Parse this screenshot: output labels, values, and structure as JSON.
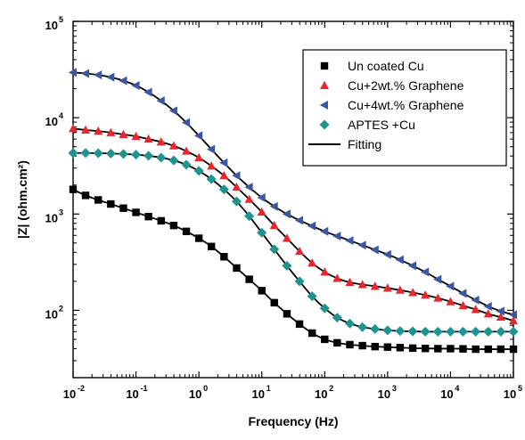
{
  "chart_data": {
    "type": "scatter",
    "xlabel": "Frequency (Hz)",
    "ylabel": "|Z| (ohm.cm²)",
    "x_scale": "log",
    "y_scale": "log",
    "xlim": [
      0.01,
      100000
    ],
    "ylim": [
      20,
      100000
    ],
    "x_ticks": [
      {
        "value": 0.01,
        "base": "10",
        "exp": "-2"
      },
      {
        "value": 0.1,
        "base": "10",
        "exp": "-1"
      },
      {
        "value": 1,
        "base": "10",
        "exp": "0"
      },
      {
        "value": 10,
        "base": "10",
        "exp": "1"
      },
      {
        "value": 100,
        "base": "10",
        "exp": "2"
      },
      {
        "value": 1000,
        "base": "10",
        "exp": "3"
      },
      {
        "value": 10000,
        "base": "10",
        "exp": "4"
      },
      {
        "value": 100000,
        "base": "10",
        "exp": "5"
      }
    ],
    "y_ticks": [
      {
        "value": 100,
        "base": "10",
        "exp": "2"
      },
      {
        "value": 1000,
        "base": "10",
        "exp": "3"
      },
      {
        "value": 10000,
        "base": "10",
        "exp": "4"
      },
      {
        "value": 100000,
        "base": "10",
        "exp": "5"
      }
    ],
    "grid": false,
    "legend_position": "top-right",
    "fit_label": "Fitting",
    "series": [
      {
        "name": "Un coated Cu",
        "marker": "square",
        "color": "#000000",
        "x": [
          0.01,
          0.0158,
          0.0251,
          0.0398,
          0.0631,
          0.1,
          0.158,
          0.251,
          0.398,
          0.631,
          1,
          1.58,
          2.51,
          3.98,
          6.31,
          10,
          15.8,
          25.1,
          39.8,
          63.1,
          100,
          158,
          251,
          398,
          631,
          1000,
          1580,
          2510,
          3980,
          6310,
          10000,
          15800,
          25100,
          39800,
          63100,
          100000
        ],
        "values": [
          1800,
          1560,
          1400,
          1270,
          1150,
          1040,
          940,
          850,
          760,
          660,
          560,
          460,
          360,
          275,
          210,
          160,
          120,
          92,
          72,
          58,
          50,
          46,
          44,
          43,
          42,
          41.5,
          41,
          40.5,
          40.2,
          40,
          40,
          39.8,
          39.5,
          39.5,
          39.5,
          39.5
        ]
      },
      {
        "name": "Cu+2wt.% Graphene",
        "marker": "triangle-up",
        "color": "#e8262b",
        "x": [
          0.01,
          0.0158,
          0.0251,
          0.0398,
          0.0631,
          0.1,
          0.158,
          0.251,
          0.398,
          0.631,
          1,
          1.58,
          2.51,
          3.98,
          6.31,
          10,
          15.8,
          25.1,
          39.8,
          63.1,
          100,
          158,
          251,
          398,
          631,
          1000,
          1580,
          2510,
          3980,
          6310,
          10000,
          15800,
          25100,
          39800,
          63100,
          100000
        ],
        "values": [
          7700,
          7450,
          7250,
          7000,
          6700,
          6400,
          6000,
          5600,
          5100,
          4500,
          3850,
          3150,
          2500,
          1900,
          1420,
          1050,
          760,
          560,
          410,
          310,
          250,
          215,
          195,
          185,
          178,
          170,
          162,
          153,
          144,
          134,
          123,
          112,
          102,
          92,
          85,
          78
        ]
      },
      {
        "name": "Cu+4wt.% Graphene",
        "marker": "triangle-left",
        "color": "#3a56a5",
        "x": [
          0.01,
          0.0158,
          0.0251,
          0.0398,
          0.0631,
          0.1,
          0.158,
          0.251,
          0.398,
          0.631,
          1,
          1.58,
          2.51,
          3.98,
          6.31,
          10,
          15.8,
          25.1,
          39.8,
          63.1,
          100,
          158,
          251,
          398,
          631,
          1000,
          1580,
          2510,
          3980,
          6310,
          10000,
          15800,
          25100,
          39800,
          63100,
          100000
        ],
        "values": [
          29500,
          28800,
          27800,
          26300,
          24200,
          21600,
          18400,
          15000,
          11800,
          8900,
          6500,
          4700,
          3400,
          2500,
          1900,
          1480,
          1200,
          1000,
          860,
          750,
          660,
          590,
          530,
          475,
          425,
          380,
          335,
          290,
          250,
          210,
          178,
          150,
          128,
          110,
          98,
          90
        ]
      },
      {
        "name": "APTES +Cu",
        "marker": "diamond",
        "color": "#1e9490",
        "x": [
          0.01,
          0.0158,
          0.0251,
          0.0398,
          0.0631,
          0.1,
          0.158,
          0.251,
          0.398,
          0.631,
          1,
          1.58,
          2.51,
          3.98,
          6.31,
          10,
          15.8,
          25.1,
          39.8,
          63.1,
          100,
          158,
          251,
          398,
          631,
          1000,
          1580,
          2510,
          3980,
          6310,
          10000,
          15800,
          25100,
          39800,
          63100,
          100000
        ],
        "values": [
          4300,
          4300,
          4280,
          4250,
          4200,
          4130,
          4020,
          3850,
          3600,
          3250,
          2800,
          2300,
          1800,
          1350,
          950,
          640,
          430,
          290,
          200,
          140,
          105,
          84,
          73,
          67,
          64,
          62,
          61,
          60.5,
          60,
          60,
          60,
          60,
          60,
          60,
          60,
          60
        ]
      }
    ]
  }
}
